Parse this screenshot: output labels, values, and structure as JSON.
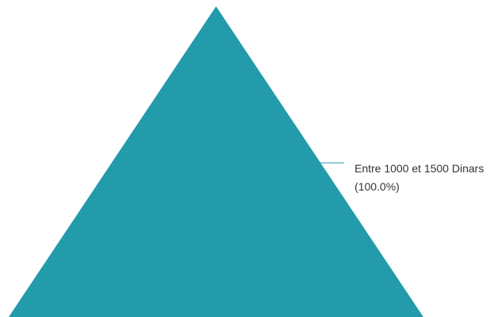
{
  "chart_data": {
    "type": "pyramid",
    "title": "",
    "series": [
      {
        "values": [
          {
            "label": "Entre 1000 et 1500 Dinars",
            "percent_label": "(100.0%)",
            "value": 100.0,
            "color": "#239BAA"
          }
        ]
      }
    ],
    "legend": "none",
    "data_labels": "outside-right with connector line"
  }
}
